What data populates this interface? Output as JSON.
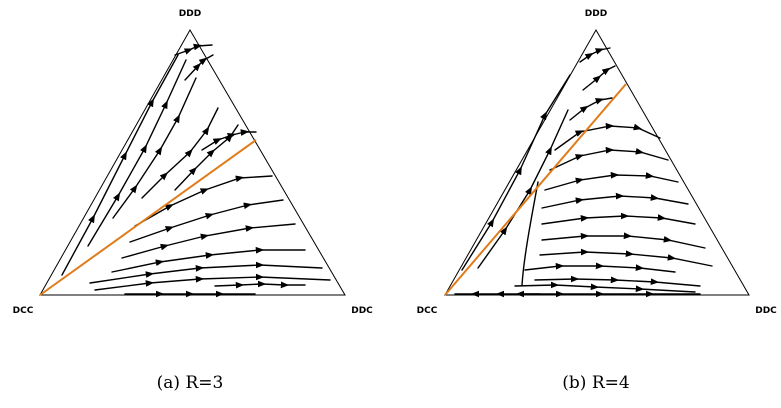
{
  "panels": [
    {
      "id": "a",
      "caption": "(a) R=3",
      "vertex_top": "DDD",
      "vertex_left": "DCC",
      "vertex_right": "DDC",
      "separatrix_color": "#e07b1a"
    },
    {
      "id": "b",
      "caption": "(b) R=4",
      "vertex_top": "DDD",
      "vertex_left": "DCC",
      "vertex_right": "DDC",
      "separatrix_color": "#e07b1a"
    }
  ]
}
